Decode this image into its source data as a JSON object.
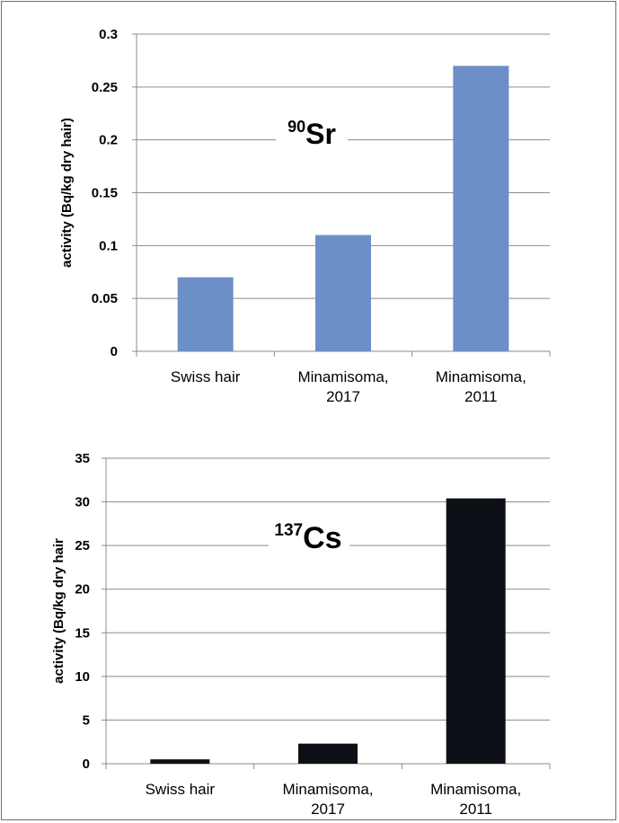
{
  "chart_data": [
    {
      "type": "bar",
      "title": "",
      "ylabel": "activity (Bq/kg dry hair)",
      "xlabel": "",
      "categories": [
        "Swiss hair",
        "Minamisoma, 2017",
        "Minamisoma, 2011"
      ],
      "category_lines": [
        [
          "Swiss hair"
        ],
        [
          "Minamisoma,",
          "2017"
        ],
        [
          "Minamisoma,",
          "2011"
        ]
      ],
      "values": [
        0.07,
        0.11,
        0.27
      ],
      "ylim": [
        0,
        0.3
      ],
      "yticks": [
        0,
        0.05,
        0.1,
        0.15,
        0.2,
        0.25,
        0.3
      ],
      "ytick_labels": [
        "0",
        "0.05",
        "0.1",
        "0.15",
        "0.2",
        "0.25",
        "0.3"
      ],
      "grid": true,
      "bar_color": "#6d8fc7",
      "annotation": {
        "mass": "90",
        "symbol": "Sr"
      }
    },
    {
      "type": "bar",
      "title": "",
      "ylabel": "activity (Bq/kg dry hair",
      "xlabel": "",
      "categories": [
        "Swiss hair",
        "Minamisoma, 2017",
        "Minamisoma, 2011"
      ],
      "category_lines": [
        [
          "Swiss hair"
        ],
        [
          "Minamisoma,",
          "2017"
        ],
        [
          "Minamisoma,",
          "2011"
        ]
      ],
      "values": [
        0.5,
        2.3,
        30.4
      ],
      "ylim": [
        0,
        35
      ],
      "yticks": [
        0,
        5,
        10,
        15,
        20,
        25,
        30,
        35
      ],
      "ytick_labels": [
        "0",
        "5",
        "10",
        "15",
        "20",
        "25",
        "30",
        "35"
      ],
      "grid": true,
      "bar_color": "#0d1117",
      "annotation": {
        "mass": "137",
        "symbol": "Cs"
      }
    }
  ]
}
